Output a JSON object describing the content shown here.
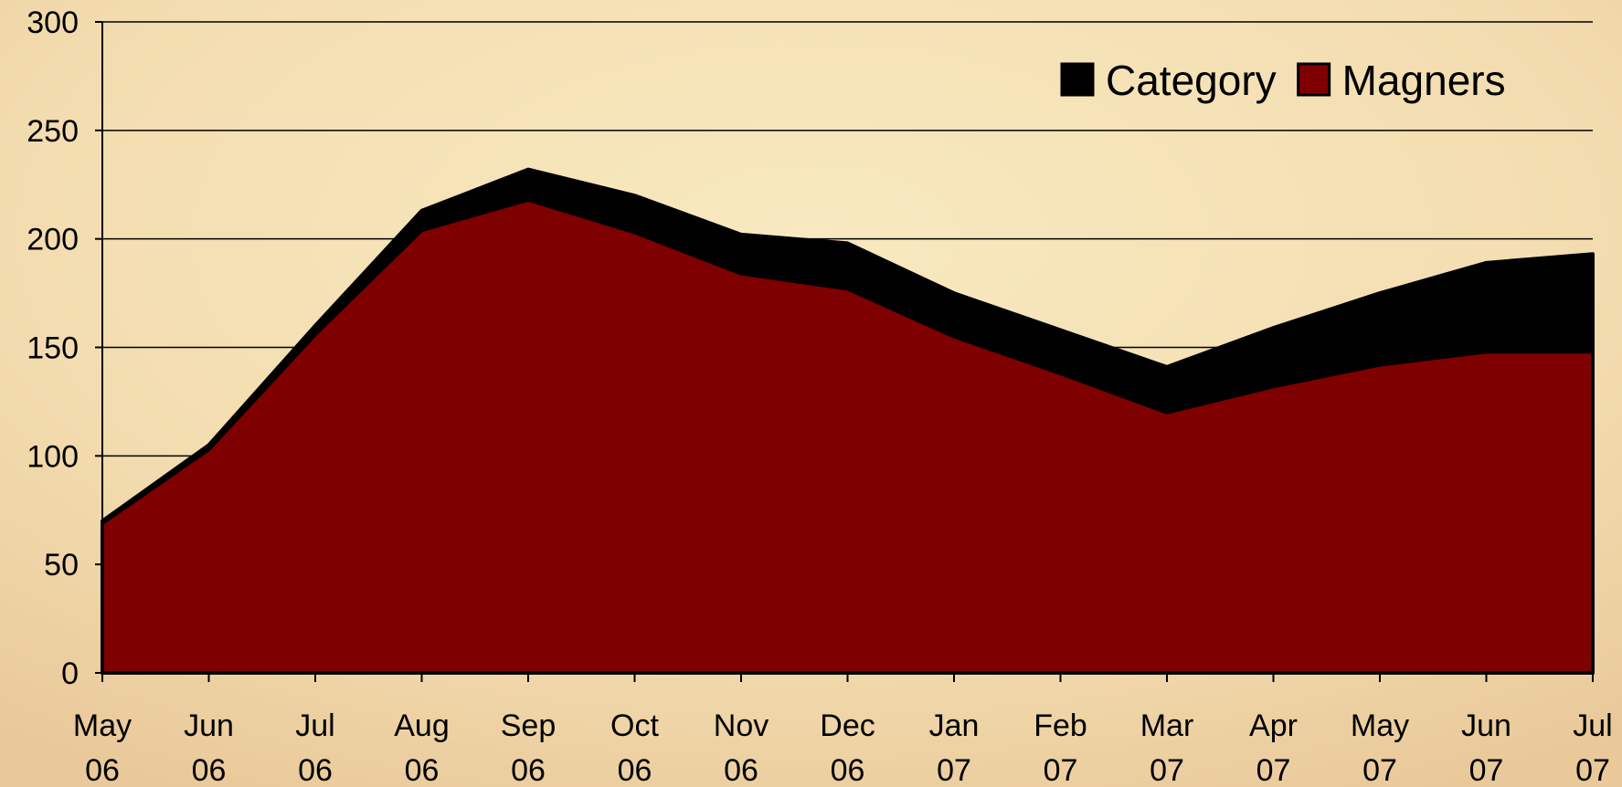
{
  "chart_data": {
    "type": "area",
    "categories": [
      "May 06",
      "Jun 06",
      "Jul 06",
      "Aug 06",
      "Sep 06",
      "Oct 06",
      "Nov 06",
      "Dec 06",
      "Jan 07",
      "Feb 07",
      "Mar 07",
      "Apr 07",
      "May 07",
      "Jun 07",
      "Jul 07"
    ],
    "series": [
      {
        "name": "Category",
        "color": "#000000",
        "values": [
          70,
          105,
          160,
          213,
          232,
          220,
          202,
          198,
          175,
          158,
          141,
          159,
          175,
          189,
          193
        ]
      },
      {
        "name": "Magners",
        "color": "#7f0000",
        "values": [
          69,
          103,
          156,
          204,
          218,
          203,
          184,
          177,
          155,
          138,
          120,
          132,
          142,
          148,
          148
        ]
      }
    ],
    "ylim": [
      0,
      300
    ],
    "yticks": [
      0,
      50,
      100,
      150,
      200,
      250,
      300
    ],
    "grid": true,
    "legend": "top-right"
  }
}
